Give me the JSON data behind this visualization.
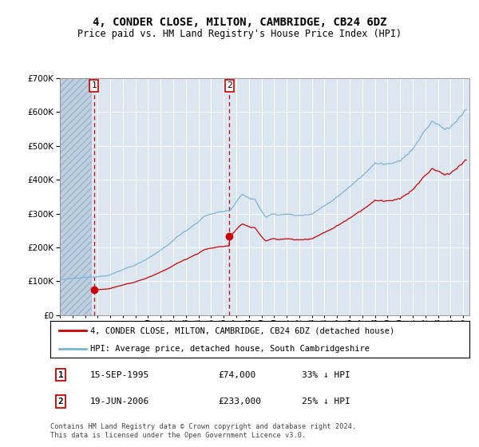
{
  "title": "4, CONDER CLOSE, MILTON, CAMBRIDGE, CB24 6DZ",
  "subtitle": "Price paid vs. HM Land Registry's House Price Index (HPI)",
  "ylim": [
    0,
    700000
  ],
  "yticks": [
    0,
    100000,
    200000,
    300000,
    400000,
    500000,
    600000,
    700000
  ],
  "ytick_labels": [
    "£0",
    "£100K",
    "£200K",
    "£300K",
    "£400K",
    "£500K",
    "£600K",
    "£700K"
  ],
  "purchase1_date": 1995.71,
  "purchase1_price": 74000,
  "purchase2_date": 2006.46,
  "purchase2_price": 233000,
  "background_color": "#ffffff",
  "plot_bg_color": "#dce6f1",
  "hatch_bg_color": "#c0cfe0",
  "grid_color": "#ffffff",
  "hpi_color": "#7ab4d8",
  "price_color": "#cc0000",
  "dashed_line_color": "#cc0000",
  "legend1_label": "4, CONDER CLOSE, MILTON, CAMBRIDGE, CB24 6DZ (detached house)",
  "legend2_label": "HPI: Average price, detached house, South Cambridgeshire",
  "note1_num": "1",
  "note1_date": "15-SEP-1995",
  "note1_price": "£74,000",
  "note1_hpi": "33% ↓ HPI",
  "note2_num": "2",
  "note2_date": "19-JUN-2006",
  "note2_price": "£233,000",
  "note2_hpi": "25% ↓ HPI",
  "footer": "Contains HM Land Registry data © Crown copyright and database right 2024.\nThis data is licensed under the Open Government Licence v3.0.",
  "xlim_start": 1993.0,
  "xlim_end": 2025.5,
  "hatch_end": 1995.5
}
